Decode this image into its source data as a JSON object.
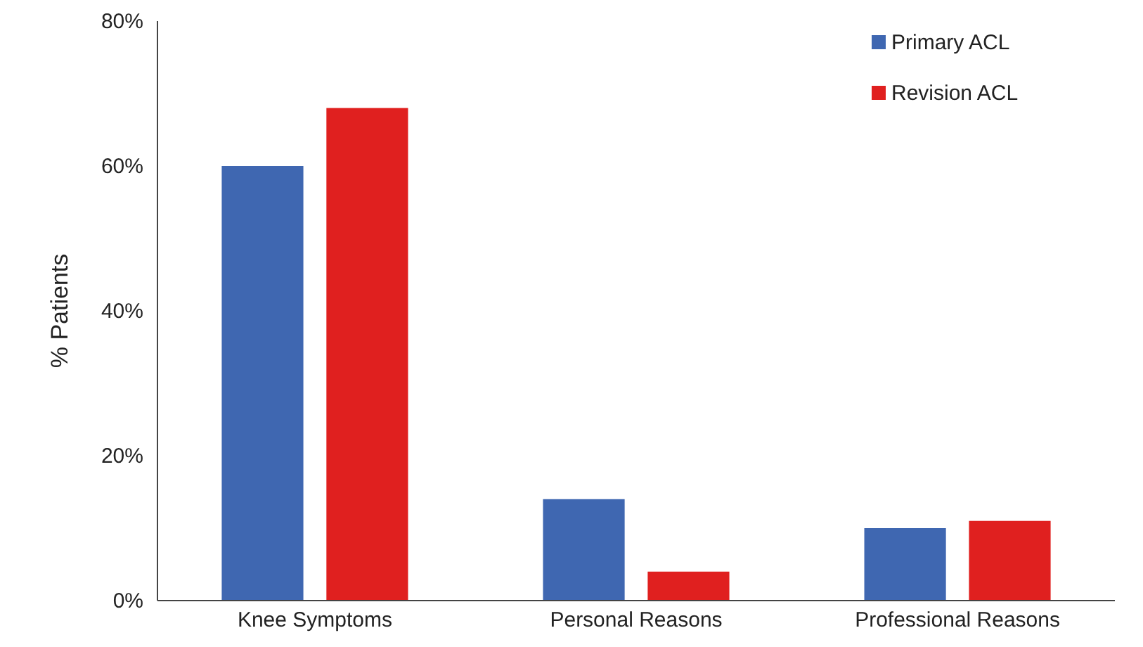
{
  "chart_data": {
    "type": "bar",
    "ylabel": "% Patients",
    "categories": [
      "Knee Symptoms",
      "Personal Reasons",
      "Professional Reasons"
    ],
    "series": [
      {
        "name": "Primary ACL",
        "color": "#3f67b1",
        "values": [
          60,
          14,
          10
        ]
      },
      {
        "name": "Revision ACL",
        "color": "#e0201f",
        "values": [
          68,
          4,
          11
        ]
      }
    ],
    "ylim": [
      0,
      80
    ],
    "yticks": [
      {
        "value": 0,
        "label": "0%"
      },
      {
        "value": 20,
        "label": "20%"
      },
      {
        "value": 40,
        "label": "40%"
      },
      {
        "value": 60,
        "label": "60%"
      },
      {
        "value": 80,
        "label": "80%"
      }
    ],
    "grid": false,
    "legend": "top right"
  }
}
